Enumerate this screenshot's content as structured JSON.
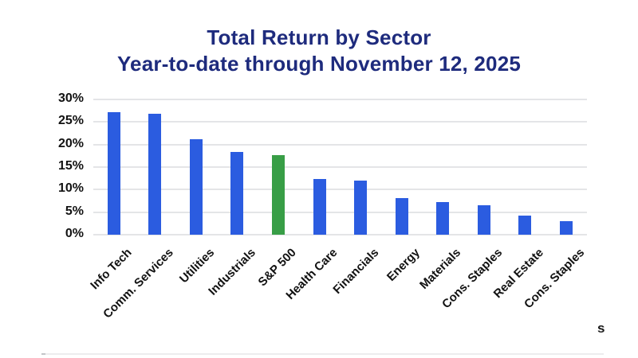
{
  "header": {
    "title_line1": "Total Return by Sector",
    "title_line2": "Year-to-date through November 12, 2025"
  },
  "chart_data": {
    "type": "bar",
    "title": "Total Return by Sector",
    "subtitle": "Year-to-date through November 12, 2025",
    "categories": [
      "Info Tech",
      "Comm. Services",
      "Utilities",
      "Industrials",
      "S&P 500",
      "Health Care",
      "Financials",
      "Energy",
      "Materials",
      "Cons. Staples",
      "Real Estate",
      "Cons. Staples"
    ],
    "values": [
      27.2,
      26.8,
      21.2,
      18.4,
      17.7,
      12.3,
      12.0,
      8.1,
      7.2,
      6.6,
      4.2,
      3.0
    ],
    "value_unit": "%",
    "highlight_index": 4,
    "highlight_category": "S&P 500",
    "xlabel": "",
    "ylabel": "",
    "ylim": [
      0,
      30
    ],
    "ytick_step": 5,
    "ytick_labels": [
      "0%",
      "5%",
      "10%",
      "15%",
      "20%",
      "25%",
      "30%"
    ],
    "grid": true,
    "legend_position": "none",
    "bar_color": "#2b5ce0",
    "highlight_color": "#389e46"
  },
  "styles": {
    "title_color": "#1e2b7d",
    "grid_color": "#e4e5e7",
    "tick_color": "#121212",
    "background": "#ffffff"
  },
  "footer": {
    "truncated_text": "s"
  }
}
